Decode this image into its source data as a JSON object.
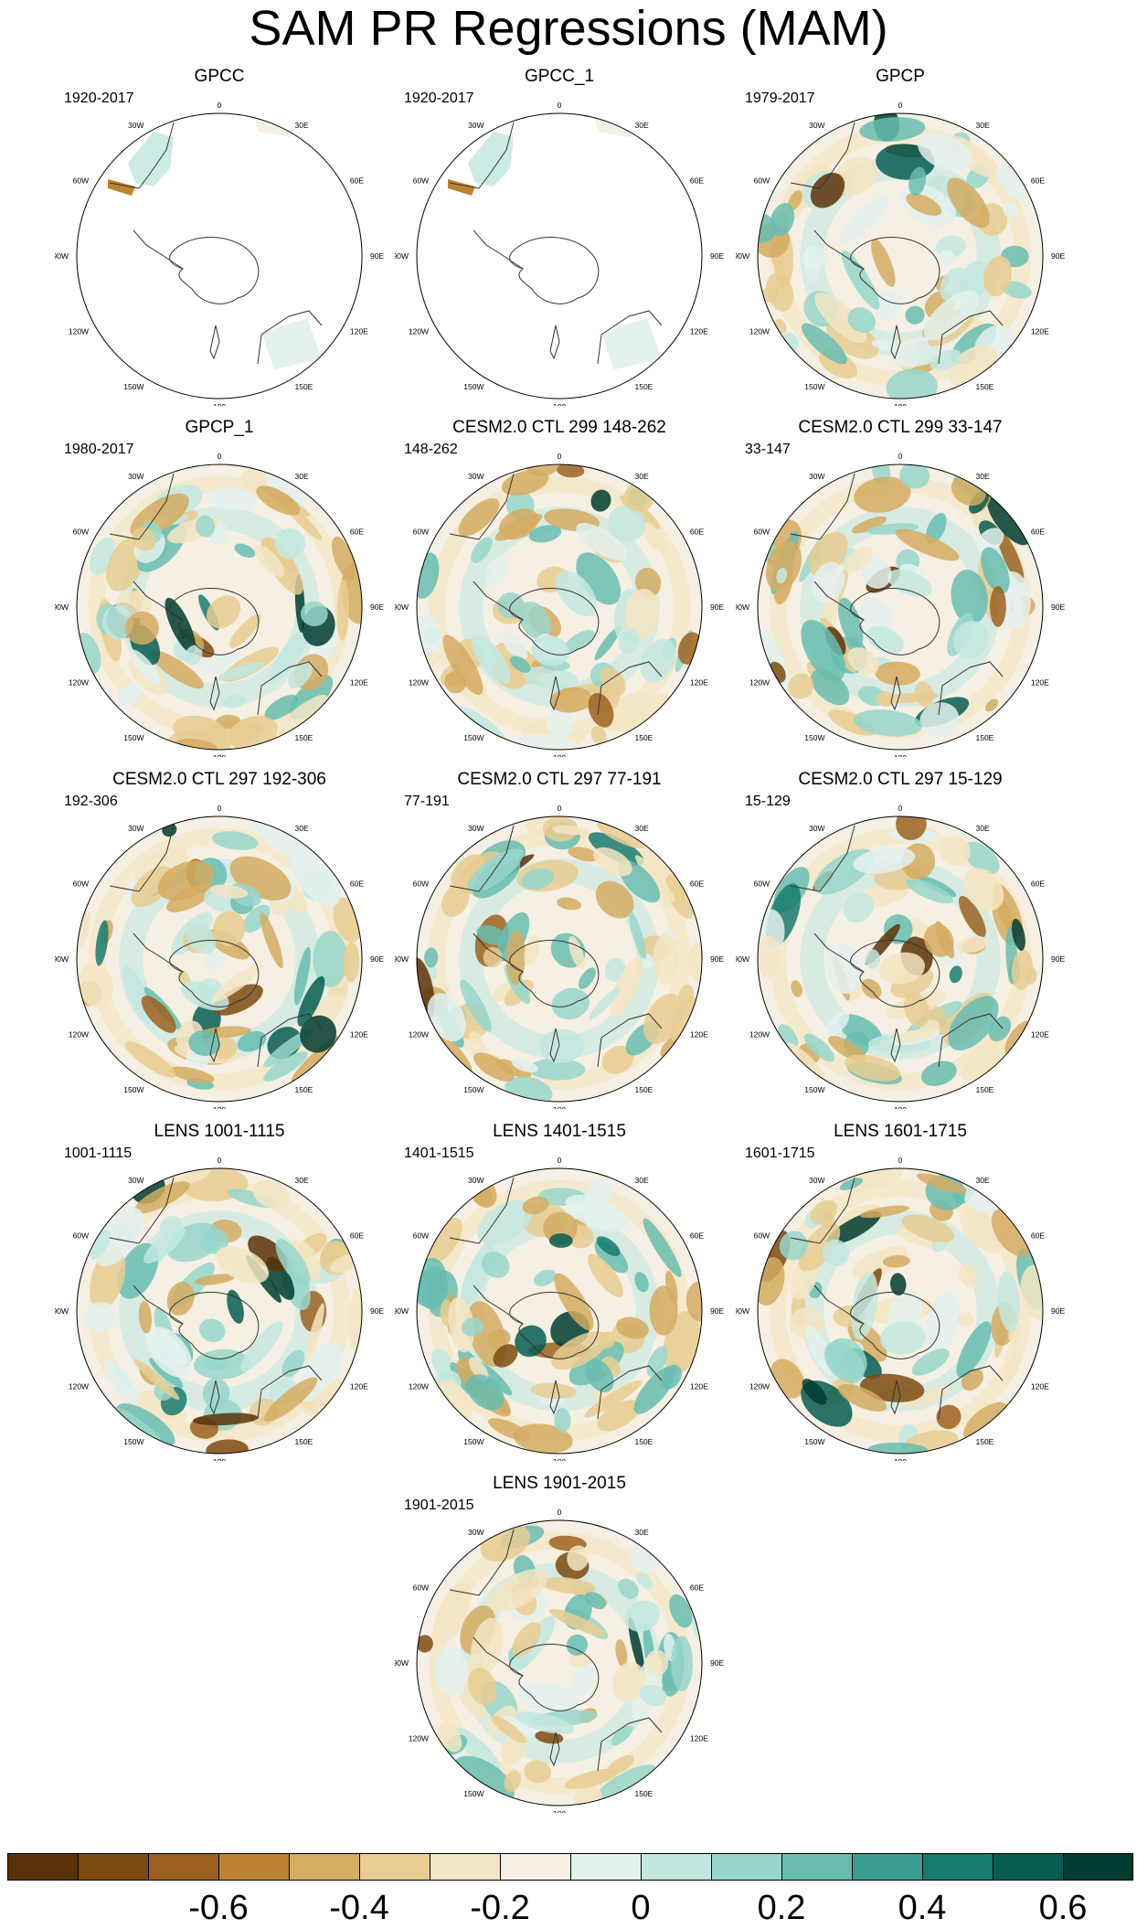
{
  "title": "SAM PR Regressions (MAM)",
  "longitude_labels": {
    "n": "0",
    "ne30": "30E",
    "ne60": "60E",
    "e": "90E",
    "se120": "120E",
    "se150": "150E",
    "s": "180",
    "sw150": "150W",
    "sw120": "120W",
    "w": "90W",
    "nw60": "60W",
    "nw30": "30W"
  },
  "panels": [
    {
      "title": "GPCC",
      "period": "1920-2017",
      "fill": "sparse"
    },
    {
      "title": "GPCC_1",
      "period": "1920-2017",
      "fill": "sparse"
    },
    {
      "title": "GPCP",
      "period": "1979-2017",
      "fill": "full"
    },
    {
      "title": "GPCP_1",
      "period": "1980-2017",
      "fill": "full"
    },
    {
      "title": "CESM2.0 CTL 299 148-262",
      "period": "148-262",
      "fill": "full"
    },
    {
      "title": "CESM2.0 CTL 299 33-147",
      "period": "33-147",
      "fill": "full"
    },
    {
      "title": "CESM2.0 CTL 297 192-306",
      "period": "192-306",
      "fill": "full"
    },
    {
      "title": "CESM2.0 CTL 297 77-191",
      "period": "77-191",
      "fill": "full"
    },
    {
      "title": "CESM2.0 CTL 297 15-129",
      "period": "15-129",
      "fill": "full"
    },
    {
      "title": "LENS 1001-1115",
      "period": "1001-1115",
      "fill": "full"
    },
    {
      "title": "LENS 1401-1515",
      "period": "1401-1515",
      "fill": "full"
    },
    {
      "title": "LENS 1601-1715",
      "period": "1601-1715",
      "fill": "full"
    },
    {
      "title": "LENS 1901-2015",
      "period": "1901-2015",
      "fill": "full"
    }
  ],
  "colorbar": {
    "colors": [
      "#5a3208",
      "#7d4a10",
      "#9c6120",
      "#bc8432",
      "#d4ac62",
      "#e8cc92",
      "#f3e5c3",
      "#f5f0e3",
      "#e3f1ef",
      "#c3e7e1",
      "#98d6cb",
      "#69bdb0",
      "#3a9c92",
      "#177b70",
      "#075d52",
      "#003c30"
    ],
    "labels": [
      "-0.6",
      "-0.4",
      "-0.2",
      "0",
      "0.2",
      "0.4",
      "0.6"
    ]
  }
}
